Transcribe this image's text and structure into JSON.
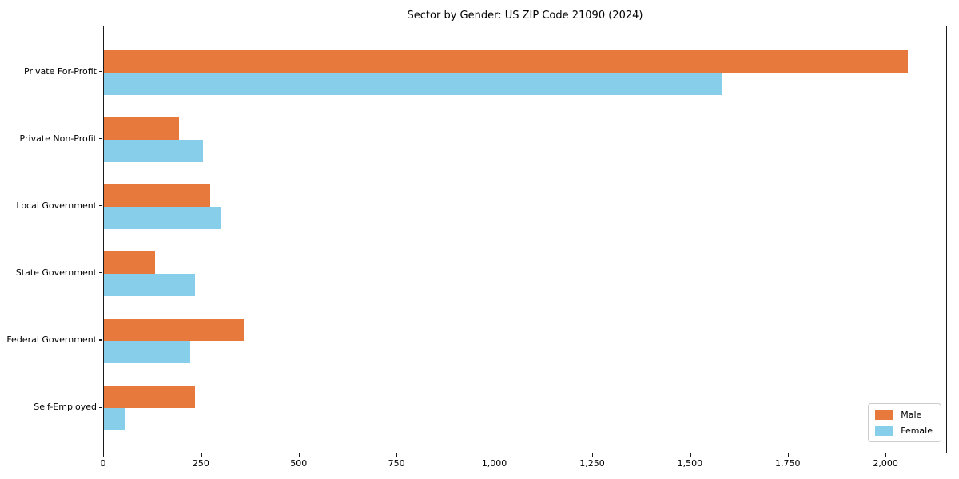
{
  "page": {
    "background": "#ffffff"
  },
  "chart_data": {
    "type": "bar",
    "orientation": "horizontal",
    "title": "Sector by Gender: US ZIP Code 21090 (2024)",
    "categories": [
      "Private For-Profit",
      "Private Non-Profit",
      "Local Government",
      "State Government",
      "Federal Government",
      "Self-Employed"
    ],
    "series": [
      {
        "name": "Male",
        "color": "#E8793D",
        "values": [
          2055,
          193,
          271,
          131,
          357,
          233
        ]
      },
      {
        "name": "Female",
        "color": "#87CEEB",
        "values": [
          1578,
          253,
          298,
          233,
          220,
          53
        ]
      }
    ],
    "xlabel": "",
    "ylabel": "",
    "xlim": [
      0,
      2157
    ],
    "xticks": [
      0,
      250,
      500,
      750,
      1000,
      1250,
      1500,
      1750,
      2000
    ],
    "xtick_labels": [
      "0",
      "250",
      "500",
      "750",
      "1,000",
      "1,250",
      "1,500",
      "1,750",
      "2,000"
    ],
    "grid": false,
    "legend": {
      "position": "lower right"
    }
  }
}
